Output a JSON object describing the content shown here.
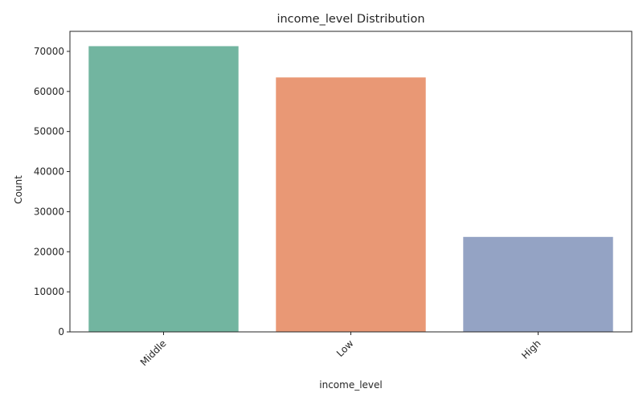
{
  "chart_data": {
    "type": "bar",
    "title": "income_level Distribution",
    "xlabel": "income_level",
    "ylabel": "Count",
    "categories": [
      "Middle",
      "Low",
      "High"
    ],
    "values": [
      71300,
      63500,
      23700
    ],
    "ylim": [
      0,
      75000
    ],
    "yticks": [
      0,
      10000,
      20000,
      30000,
      40000,
      50000,
      60000,
      70000
    ],
    "colors": [
      "#72b5a0",
      "#e99875",
      "#94a3c4"
    ],
    "grid": false,
    "legend": "none"
  }
}
